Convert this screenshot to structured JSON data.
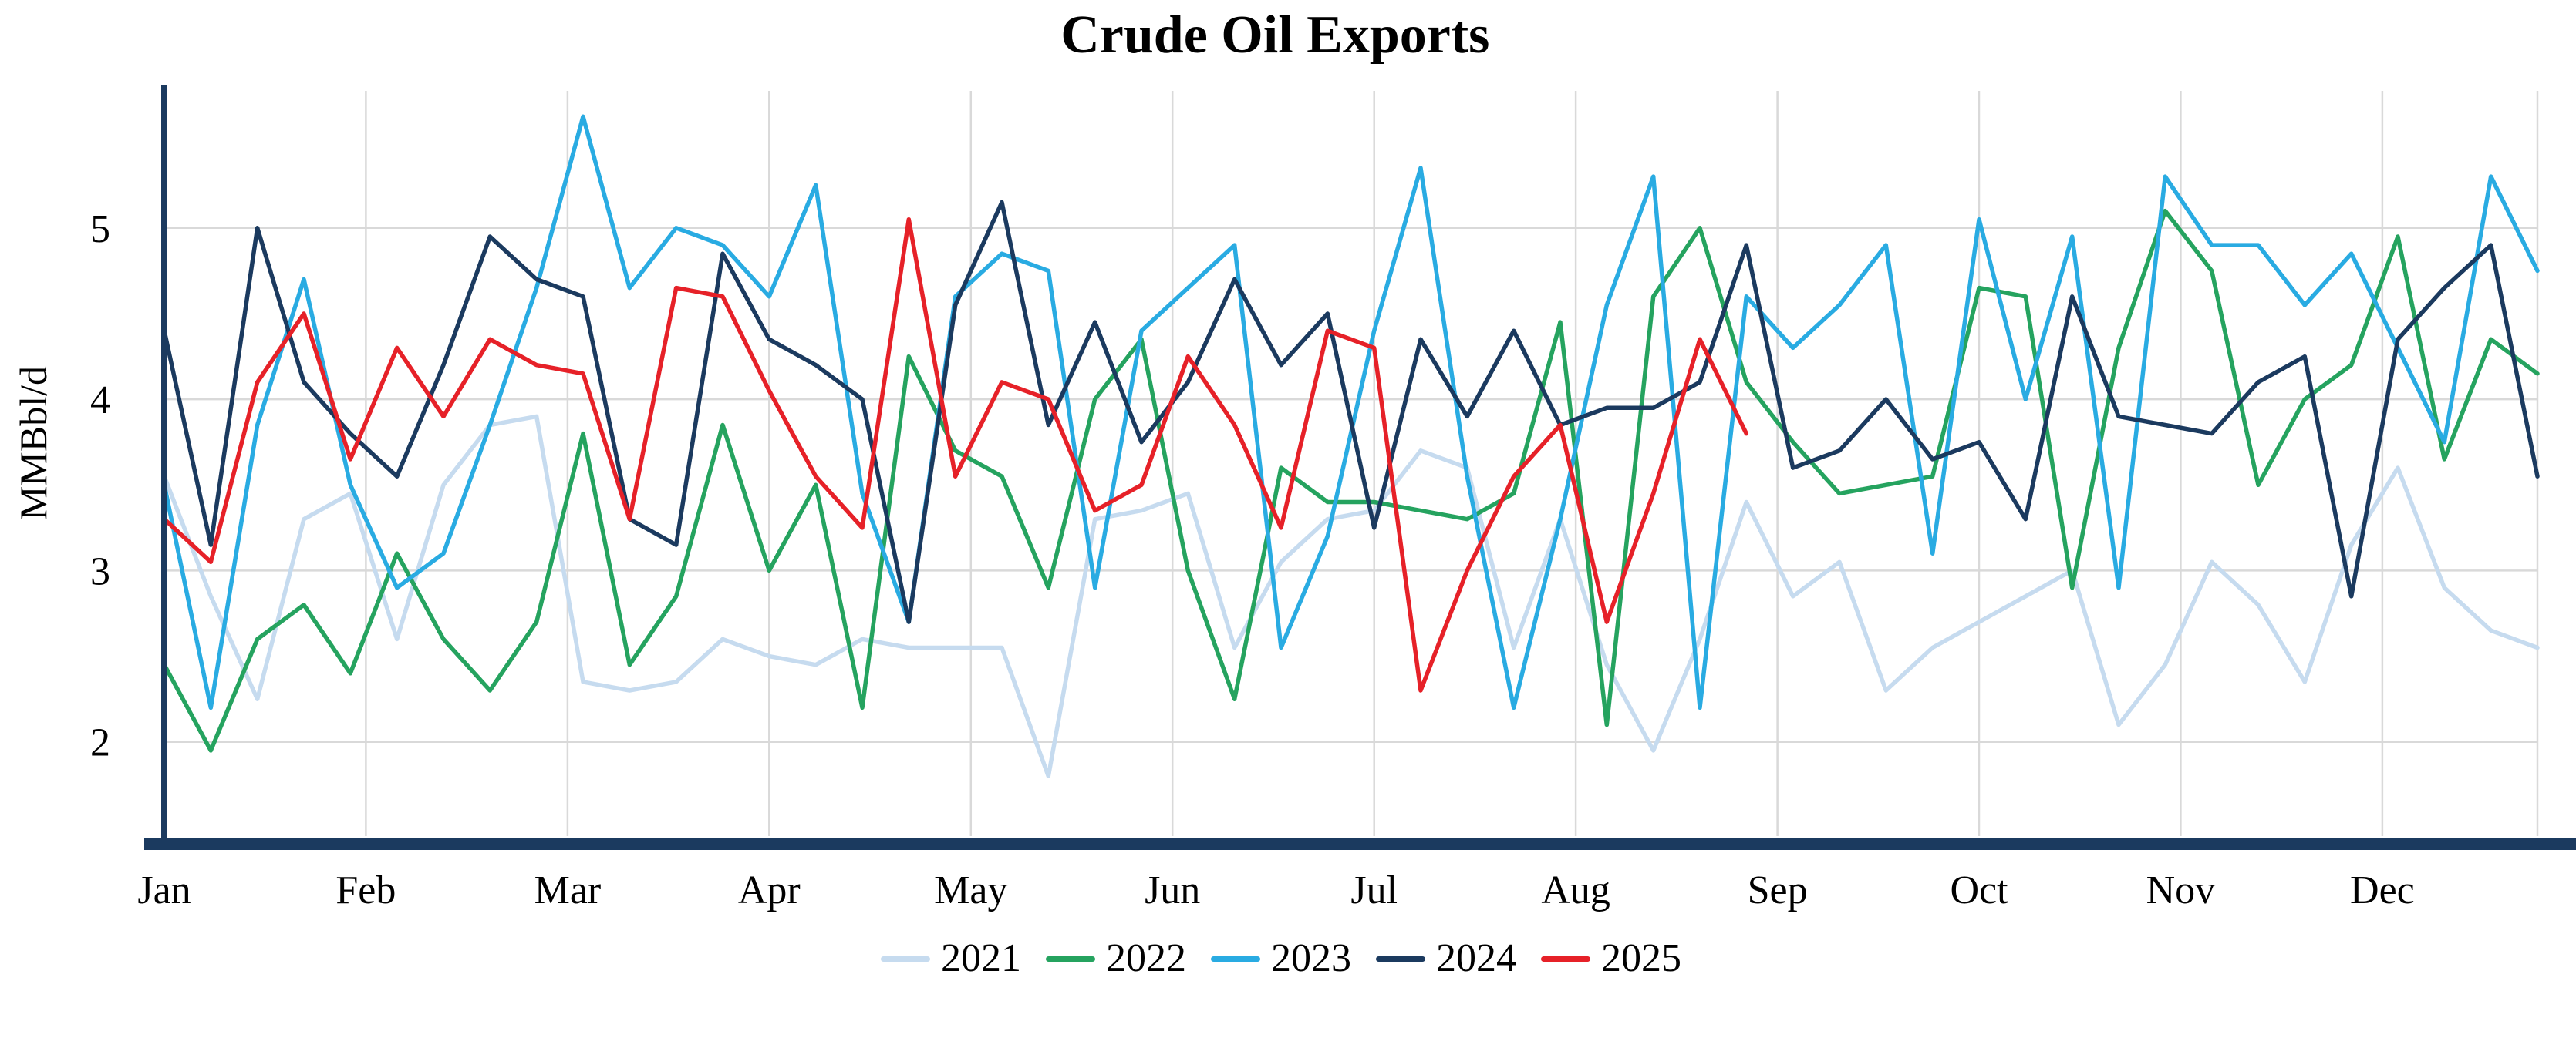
{
  "chart_data": {
    "type": "line",
    "title": "Crude Oil Exports",
    "ylabel": "MMBbl/d",
    "x_unit": "week_of_year",
    "xlim_weeks": [
      0,
      51
    ],
    "ylim": [
      1.45,
      5.8
    ],
    "yticks": [
      2,
      3,
      4,
      5
    ],
    "months": [
      "Jan",
      "Feb",
      "Mar",
      "Apr",
      "May",
      "Jun",
      "Jul",
      "Aug",
      "Sep",
      "Oct",
      "Nov",
      "Dec"
    ],
    "grid": true,
    "grid_color": "#d9d9d9",
    "axis_color": "#1b3a5f",
    "legend_position": "bottom-center",
    "series": [
      {
        "name": "2021",
        "color": "#c6dbef",
        "values": [
          3.55,
          2.85,
          2.25,
          3.3,
          3.45,
          2.6,
          3.5,
          3.85,
          3.9,
          2.35,
          2.3,
          2.35,
          2.6,
          2.5,
          2.45,
          2.6,
          2.55,
          2.55,
          2.55,
          1.8,
          3.3,
          3.35,
          3.45,
          2.55,
          3.05,
          3.3,
          3.35,
          3.7,
          3.6,
          2.55,
          3.3,
          2.45,
          1.95,
          2.6,
          3.4,
          2.85,
          3.05,
          2.3,
          2.55,
          2.7,
          2.85,
          3.0,
          2.1,
          2.45,
          3.05,
          2.8,
          2.35,
          3.15,
          3.6,
          2.9,
          2.65,
          2.55
        ]
      },
      {
        "name": "2022",
        "color": "#25a35f",
        "values": [
          2.45,
          1.95,
          2.6,
          2.8,
          2.4,
          3.1,
          2.6,
          2.3,
          2.7,
          3.8,
          2.45,
          2.85,
          3.85,
          3.0,
          3.5,
          2.2,
          4.25,
          3.7,
          3.55,
          2.9,
          4.0,
          4.35,
          3.0,
          2.25,
          3.6,
          3.4,
          3.4,
          3.35,
          3.3,
          3.45,
          4.45,
          2.1,
          4.6,
          5.0,
          4.1,
          3.75,
          3.45,
          3.5,
          3.55,
          4.65,
          4.6,
          2.9,
          4.3,
          5.1,
          4.75,
          3.5,
          4.0,
          4.2,
          4.95,
          3.65,
          4.35,
          4.15
        ]
      },
      {
        "name": "2023",
        "color": "#29abe2",
        "values": [
          3.5,
          2.2,
          3.85,
          4.7,
          3.5,
          2.9,
          3.1,
          3.85,
          4.65,
          5.65,
          4.65,
          5.0,
          4.9,
          4.6,
          5.25,
          3.45,
          2.7,
          4.6,
          4.85,
          4.75,
          2.9,
          4.4,
          4.65,
          4.9,
          2.55,
          3.2,
          4.4,
          5.35,
          3.55,
          2.2,
          3.3,
          4.55,
          5.3,
          2.2,
          4.6,
          4.3,
          4.55,
          4.9,
          3.1,
          5.05,
          4.0,
          4.95,
          2.9,
          5.3,
          4.9,
          4.9,
          4.55,
          4.85,
          4.3,
          3.75,
          5.3,
          4.75
        ]
      },
      {
        "name": "2024",
        "color": "#1b3a5f",
        "values": [
          4.4,
          3.15,
          5.0,
          4.1,
          3.8,
          3.55,
          4.2,
          4.95,
          4.7,
          4.6,
          3.3,
          3.15,
          4.85,
          4.35,
          4.2,
          4.0,
          2.7,
          4.55,
          5.15,
          3.85,
          4.45,
          3.75,
          4.1,
          4.7,
          4.2,
          4.5,
          3.25,
          4.35,
          3.9,
          4.4,
          3.85,
          3.95,
          3.95,
          4.1,
          4.9,
          3.6,
          3.7,
          4.0,
          3.65,
          3.75,
          3.3,
          4.6,
          3.9,
          3.85,
          3.8,
          4.1,
          4.25,
          2.85,
          4.35,
          4.65,
          4.9,
          3.55
        ]
      },
      {
        "name": "2025",
        "color": "#e62128",
        "values": [
          3.3,
          3.05,
          4.1,
          4.5,
          3.65,
          4.3,
          3.9,
          4.35,
          4.2,
          4.15,
          3.3,
          4.65,
          4.6,
          4.05,
          3.55,
          3.25,
          5.05,
          3.55,
          4.1,
          4.0,
          3.35,
          3.5,
          4.25,
          3.85,
          3.25,
          4.4,
          4.3,
          2.3,
          3.0,
          3.55,
          3.85,
          2.7,
          3.45,
          4.35,
          3.8
        ]
      }
    ]
  }
}
